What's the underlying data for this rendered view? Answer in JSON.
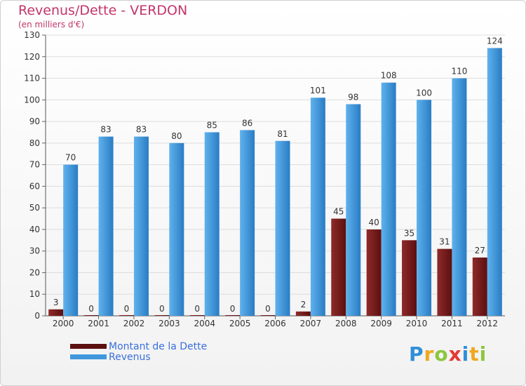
{
  "chart_data": {
    "type": "bar",
    "title": "Revenus/Dette - VERDON",
    "subtitle": "(en milliers d'€)",
    "categories": [
      "2000",
      "2001",
      "2002",
      "2003",
      "2004",
      "2005",
      "2006",
      "2007",
      "2008",
      "2009",
      "2010",
      "2011",
      "2012"
    ],
    "series": [
      {
        "name": "Montant de la Dette",
        "color": "#7a1c1c",
        "values": [
          3,
          0,
          0,
          0,
          0,
          0,
          0,
          2,
          45,
          40,
          35,
          31,
          27
        ]
      },
      {
        "name": "Revenus",
        "color": "#3f97dd",
        "values": [
          70,
          83,
          83,
          80,
          85,
          86,
          81,
          101,
          98,
          108,
          100,
          110,
          124
        ]
      }
    ],
    "ylim": [
      0,
      130
    ],
    "yticks": [
      0,
      10,
      20,
      30,
      40,
      50,
      60,
      70,
      80,
      90,
      100,
      110,
      120,
      130
    ],
    "grid": true,
    "legend": "bottom-left"
  },
  "logo": {
    "letters": [
      "P",
      "r",
      "o",
      "x",
      "i",
      "t",
      "i"
    ],
    "colors": [
      "#2f8fd8",
      "#f0a81e",
      "#8cc63f",
      "#e53935",
      "#2f8fd8",
      "#f0a81e",
      "#8cc63f"
    ]
  }
}
